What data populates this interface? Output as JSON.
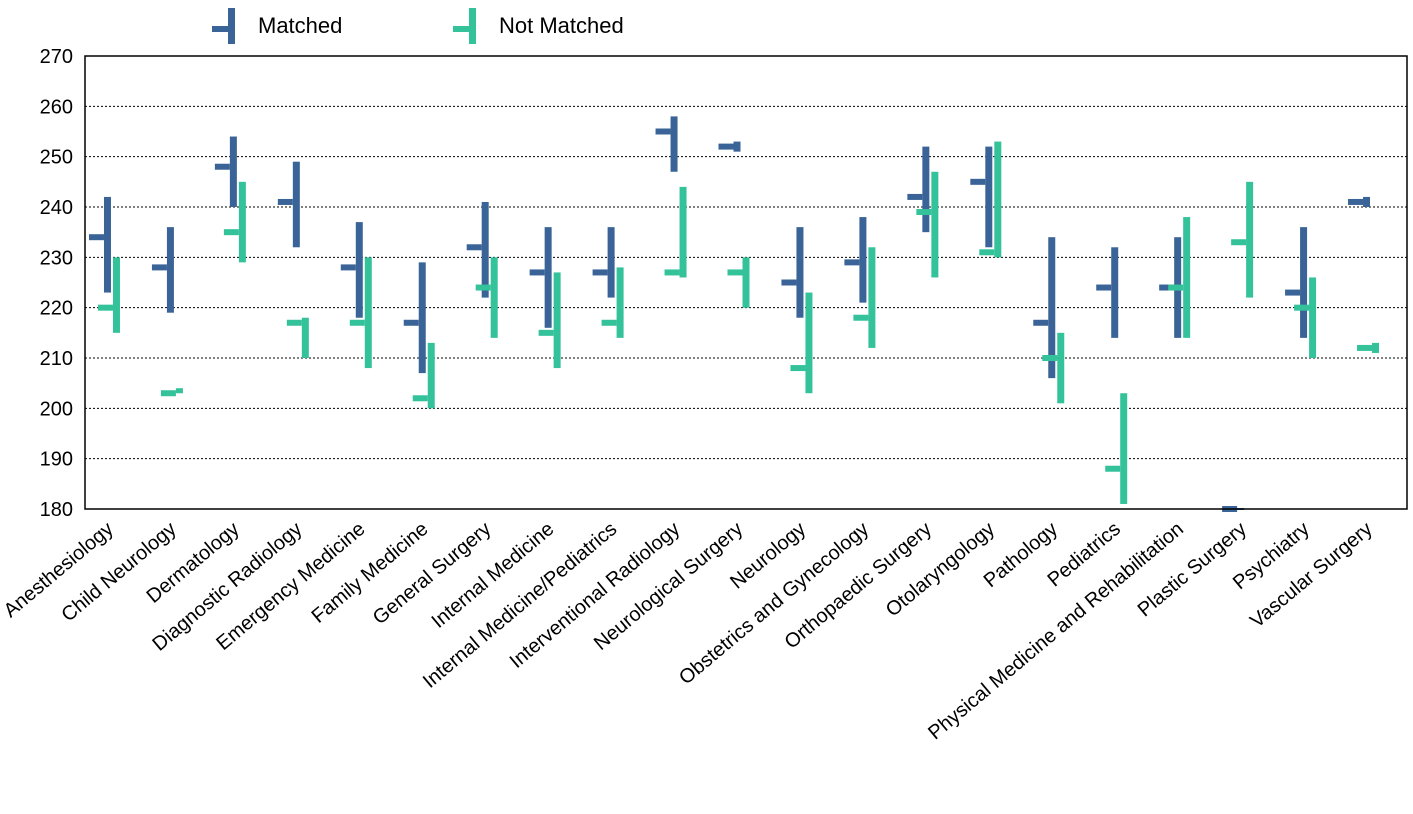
{
  "chart_data": {
    "type": "range",
    "title": "",
    "xlabel": "",
    "ylabel": "",
    "ylim": [
      180,
      270
    ],
    "yticks": [
      180,
      190,
      200,
      210,
      220,
      230,
      240,
      250,
      260,
      270
    ],
    "grid": true,
    "legend_position": "top",
    "categories": [
      "Anesthesiology",
      "Child Neurology",
      "Dermatology",
      "Diagnostic Radiology",
      "Emergency Medicine",
      "Family Medicine",
      "General Surgery",
      "Internal Medicine",
      "Internal Medicine/Pediatrics",
      "Interventional Radiology",
      "Neurological Surgery",
      "Neurology",
      "Obstetrics and Gynecology",
      "Orthopaedic Surgery",
      "Otolaryngology",
      "Pathology",
      "Pediatrics",
      "Physical Medicine and Rehabilitation",
      "Plastic Surgery",
      "Psychiatry",
      "Vascular Surgery"
    ],
    "series": [
      {
        "name": "Matched",
        "color": "#3a6497",
        "low": [
          223,
          219,
          240,
          232,
          218,
          207,
          222,
          216,
          222,
          247,
          251,
          218,
          221,
          235,
          232,
          206,
          214,
          214,
          180,
          214,
          240
        ],
        "high": [
          242,
          236,
          254,
          249,
          237,
          229,
          241,
          236,
          236,
          258,
          253,
          236,
          238,
          252,
          252,
          234,
          232,
          234,
          180,
          236,
          242
        ],
        "mean": [
          234,
          228,
          248,
          241,
          228,
          217,
          232,
          227,
          227,
          255,
          252,
          225,
          229,
          242,
          245,
          217,
          224,
          224,
          180,
          223,
          241
        ]
      },
      {
        "name": "Not Matched",
        "color": "#34c29b",
        "low": [
          215,
          203,
          229,
          210,
          208,
          200,
          214,
          208,
          214,
          226,
          220,
          203,
          212,
          226,
          230,
          201,
          181,
          214,
          222,
          210,
          211
        ],
        "high": [
          230,
          204,
          245,
          218,
          230,
          213,
          230,
          227,
          228,
          244,
          230,
          223,
          232,
          247,
          253,
          215,
          203,
          238,
          245,
          226,
          213
        ],
        "mean": [
          220,
          203,
          235,
          217,
          217,
          202,
          224,
          215,
          217,
          227,
          227,
          208,
          218,
          239,
          231,
          210,
          188,
          224,
          233,
          220,
          212
        ]
      }
    ]
  }
}
